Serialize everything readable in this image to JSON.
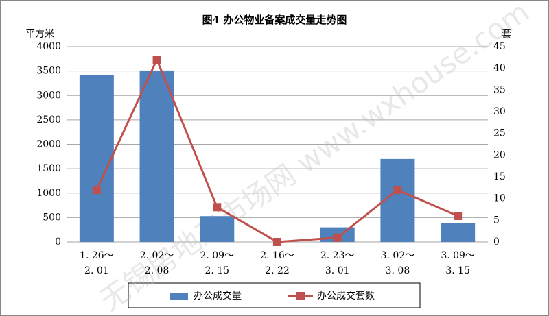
{
  "chart_data": {
    "type": "bar-line",
    "title": "图4   办公物业备案成交量走势图",
    "ylabel": "平方米",
    "y2label": "套",
    "categories": [
      [
        "1. 26～",
        "2. 01"
      ],
      [
        "2. 02～",
        "2. 08"
      ],
      [
        "2. 09～",
        "2. 15"
      ],
      [
        "2. 16～",
        "2. 22"
      ],
      [
        "2. 23～",
        "3. 01"
      ],
      [
        "3. 02～",
        "3. 08"
      ],
      [
        "3. 09～",
        "3. 15"
      ]
    ],
    "series": [
      {
        "name": "办公成交量",
        "type": "bar",
        "color": "#4f81bd",
        "values": [
          3420,
          3510,
          530,
          0,
          300,
          1700,
          380
        ]
      },
      {
        "name": "办公成交套数",
        "type": "line",
        "axis": "y2",
        "color": "#c0504d",
        "values": [
          12,
          42,
          8,
          0,
          1,
          12,
          6
        ]
      }
    ],
    "ylim": [
      0,
      4000
    ],
    "yticks": [
      0,
      500,
      1000,
      1500,
      2000,
      2500,
      3000,
      3500,
      4000
    ],
    "y2lim": [
      0,
      45
    ],
    "y2ticks": [
      0,
      5,
      10,
      15,
      20,
      25,
      30,
      35,
      40,
      45
    ],
    "grid": true,
    "legend": "bottom",
    "watermark": "无锡房地产市场网 www.wxhouse.com"
  }
}
